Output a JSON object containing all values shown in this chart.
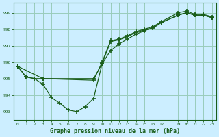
{
  "bg_color": "#cceeff",
  "grid_color": "#99ccbb",
  "line_color": "#1a5e1a",
  "marker": "+",
  "markersize": 4,
  "markeredgewidth": 1.2,
  "linewidth": 0.9,
  "xlim": [
    -0.5,
    23.5
  ],
  "ylim": [
    992.5,
    999.6
  ],
  "yticks": [
    993,
    994,
    995,
    996,
    997,
    998,
    999
  ],
  "xticks": [
    0,
    1,
    2,
    3,
    4,
    5,
    6,
    7,
    8,
    9,
    10,
    11,
    12,
    13,
    14,
    15,
    16,
    17,
    19,
    20,
    21,
    22,
    23
  ],
  "xlabel": "Graphe pression niveau de la mer (hPa)",
  "series1_x": [
    0,
    1,
    2,
    3,
    4,
    5,
    6,
    7,
    8,
    9,
    10,
    11,
    12,
    13,
    14,
    15,
    16,
    17,
    19,
    20,
    21,
    22,
    23
  ],
  "series1_y": [
    995.75,
    995.1,
    995.0,
    994.65,
    993.85,
    993.5,
    993.1,
    993.0,
    993.3,
    993.8,
    995.9,
    997.25,
    997.35,
    997.55,
    997.8,
    997.95,
    998.05,
    998.4,
    998.85,
    999.0,
    998.85,
    998.85,
    998.7
  ],
  "series2_x": [
    0,
    1,
    2,
    3,
    9,
    10,
    11,
    12,
    13,
    14,
    15,
    16,
    17,
    19,
    20,
    21,
    22,
    23
  ],
  "series2_y": [
    995.75,
    995.1,
    995.0,
    995.0,
    995.0,
    995.9,
    996.7,
    997.1,
    997.4,
    997.7,
    997.9,
    998.1,
    998.4,
    998.85,
    999.0,
    998.85,
    998.85,
    998.7
  ],
  "series3_x": [
    0,
    3,
    9,
    10,
    11,
    12,
    13,
    14,
    15,
    16,
    17,
    19,
    20,
    21,
    22,
    23
  ],
  "series3_y": [
    995.75,
    995.0,
    994.9,
    996.0,
    997.3,
    997.4,
    997.6,
    997.85,
    998.0,
    998.15,
    998.45,
    999.0,
    999.1,
    998.9,
    998.9,
    998.75
  ]
}
